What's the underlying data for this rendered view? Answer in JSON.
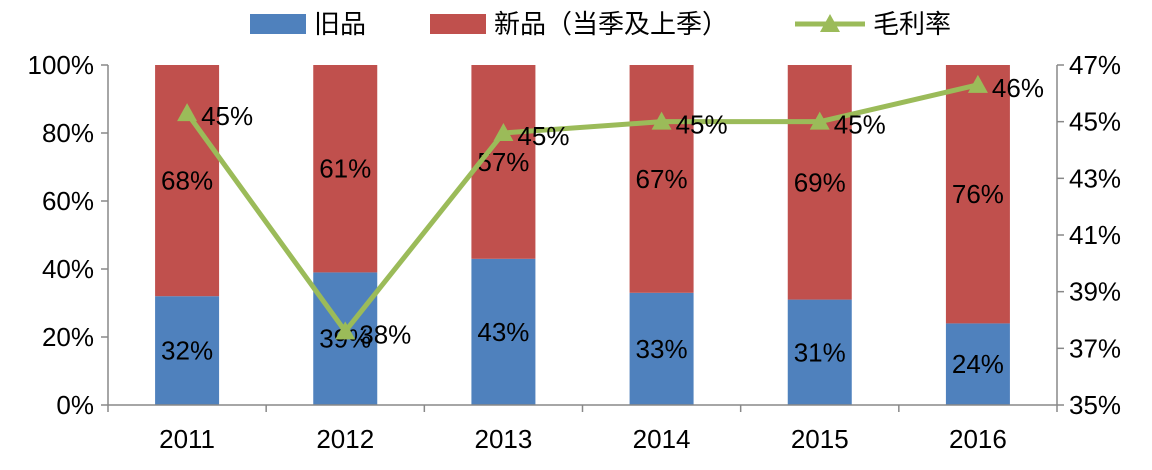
{
  "chart_data": {
    "type": "bar",
    "subtype": "stacked-bar-with-line-secondary-axis",
    "categories": [
      "2011",
      "2012",
      "2013",
      "2014",
      "2015",
      "2016"
    ],
    "series": [
      {
        "name": "旧品",
        "kind": "bar",
        "axis": "left",
        "color": "#4f81bd",
        "values": [
          32,
          39,
          43,
          33,
          31,
          24
        ],
        "labels": [
          "32%",
          "39%",
          "43%",
          "33%",
          "31%",
          "24%"
        ]
      },
      {
        "name": "新品（当季及上季）",
        "kind": "bar",
        "axis": "left",
        "color": "#c0504d",
        "values": [
          68,
          61,
          57,
          67,
          69,
          76
        ],
        "labels": [
          "68%",
          "61%",
          "57%",
          "67%",
          "69%",
          "76%"
        ]
      },
      {
        "name": "毛利率",
        "kind": "line",
        "axis": "right",
        "color": "#9bbb59",
        "marker": "triangle",
        "values": [
          45.3,
          37.6,
          44.6,
          45.0,
          45.0,
          46.3
        ],
        "labels": [
          "45%",
          "38%",
          "45%",
          "45%",
          "45%",
          "46%"
        ]
      }
    ],
    "y_left": {
      "min": 0,
      "max": 100,
      "step": 20,
      "tick_labels": [
        "0%",
        "20%",
        "40%",
        "60%",
        "80%",
        "100%"
      ]
    },
    "y_right": {
      "min": 35,
      "max": 47,
      "step": 2,
      "tick_labels": [
        "35%",
        "37%",
        "39%",
        "41%",
        "43%",
        "45%",
        "47%"
      ]
    },
    "grid": false,
    "legend_position": "top"
  }
}
